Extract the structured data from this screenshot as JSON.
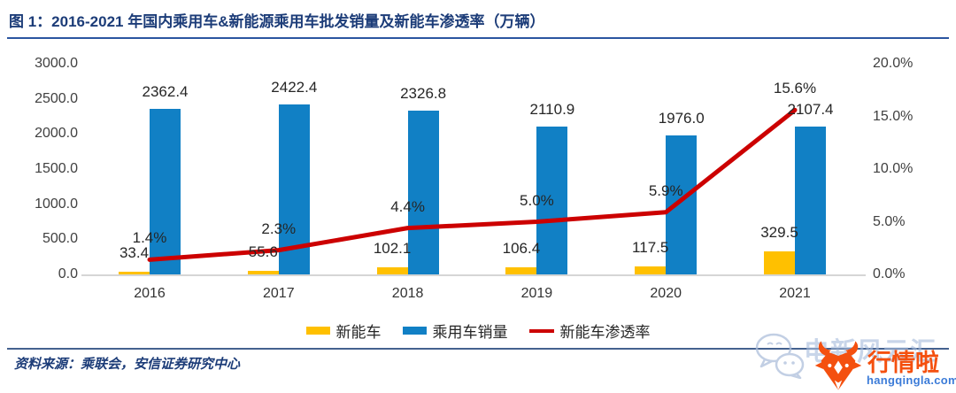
{
  "header": {
    "title": "图 1：2016-2021 年国内乘用车&新能源乘用车批发销量及新能车渗透率（万辆）"
  },
  "colors": {
    "title": "#1C3C78",
    "rule": "#2B55A0",
    "rule2": "#44618F",
    "axis_text": "#404040",
    "baseline": "#D6D6D6",
    "bar_nev": "#FFC000",
    "bar_pv": "#1180C5",
    "line": "#CC0000",
    "orange": "#F4500F",
    "domain_blue": "#3B7BD8"
  },
  "chart_data": {
    "type": "bar+line",
    "title": "2016-2021 年国内乘用车&新能源乘用车批发销量及新能车渗透率（万辆）",
    "grid": false,
    "legend_position": "bottom",
    "categories": [
      "2016",
      "2017",
      "2018",
      "2019",
      "2020",
      "2021"
    ],
    "series": [
      {
        "name": "新能车",
        "type": "bar",
        "axis": "left",
        "color": "#FFC000",
        "values": [
          33.4,
          55.6,
          102.1,
          106.4,
          117.5,
          329.5
        ],
        "labels": [
          "33.4",
          "55.6",
          "102.1",
          "106.4",
          "117.5",
          "329.5"
        ]
      },
      {
        "name": "乘用车销量",
        "type": "bar",
        "axis": "left",
        "color": "#1180C5",
        "values": [
          2362.4,
          2422.4,
          2326.8,
          2110.9,
          1976.0,
          2107.4
        ],
        "labels": [
          "2362.4",
          "2422.4",
          "2326.8",
          "2110.9",
          "1976.0",
          "2107.4"
        ]
      },
      {
        "name": "新能车渗透率",
        "type": "line",
        "axis": "right",
        "color": "#CC0000",
        "values": [
          1.4,
          2.3,
          4.4,
          5.0,
          5.9,
          15.6
        ],
        "labels": [
          "1.4%",
          "2.3%",
          "4.4%",
          "5.0%",
          "5.9%",
          "15.6%"
        ]
      }
    ],
    "left_axis": {
      "label": "",
      "min": 0,
      "max": 3000,
      "step": 500,
      "ticks": [
        "0.0",
        "500.0",
        "1000.0",
        "1500.0",
        "2000.0",
        "2500.0",
        "3000.0"
      ]
    },
    "right_axis": {
      "label": "",
      "min": 0,
      "max": 20,
      "step": 5,
      "ticks": [
        "0.0%",
        "5.0%",
        "10.0%",
        "15.0%",
        "20.0%"
      ]
    }
  },
  "footer": {
    "source": "资料来源：乘联会，安信证券研究中心"
  },
  "watermark": {
    "wechat_text": "电新风云汇",
    "brand": "行情啦",
    "domain": "hangqingla.com"
  }
}
